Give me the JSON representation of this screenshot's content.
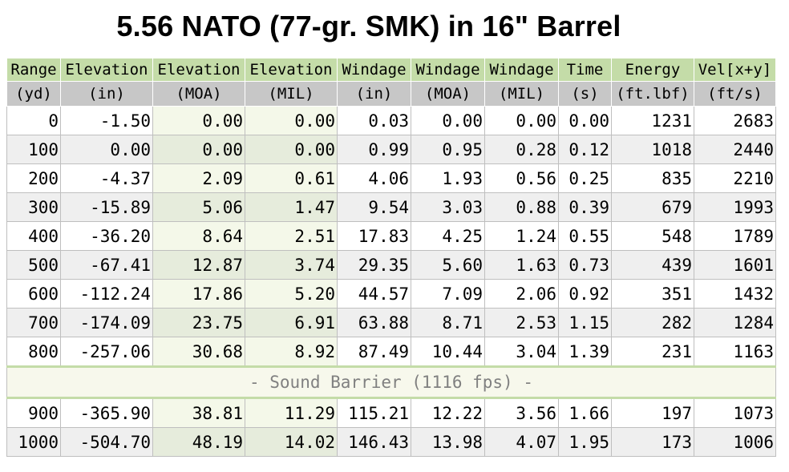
{
  "title": "5.56 NATO (77-gr. SMK) in 16\" Barrel",
  "headers": [
    "Range",
    "Elevation",
    "Elevation",
    "Elevation",
    "Windage",
    "Windage",
    "Windage",
    "Time",
    "Energy",
    "Vel[x+y]"
  ],
  "units": [
    "(yd)",
    "(in)",
    "(MOA)",
    "(MIL)",
    "(in)",
    "(MOA)",
    "(MIL)",
    "(s)",
    "(ft.lbf)",
    "(ft/s)"
  ],
  "rows_before": [
    [
      "0",
      "-1.50",
      "0.00",
      "0.00",
      "0.03",
      "0.00",
      "0.00",
      "0.00",
      "1231",
      "2683"
    ],
    [
      "100",
      "0.00",
      "0.00",
      "0.00",
      "0.99",
      "0.95",
      "0.28",
      "0.12",
      "1018",
      "2440"
    ],
    [
      "200",
      "-4.37",
      "2.09",
      "0.61",
      "4.06",
      "1.93",
      "0.56",
      "0.25",
      "835",
      "2210"
    ],
    [
      "300",
      "-15.89",
      "5.06",
      "1.47",
      "9.54",
      "3.03",
      "0.88",
      "0.39",
      "679",
      "1993"
    ],
    [
      "400",
      "-36.20",
      "8.64",
      "2.51",
      "17.83",
      "4.25",
      "1.24",
      "0.55",
      "548",
      "1789"
    ],
    [
      "500",
      "-67.41",
      "12.87",
      "3.74",
      "29.35",
      "5.60",
      "1.63",
      "0.73",
      "439",
      "1601"
    ],
    [
      "600",
      "-112.24",
      "17.86",
      "5.20",
      "44.57",
      "7.09",
      "2.06",
      "0.92",
      "351",
      "1432"
    ],
    [
      "700",
      "-174.09",
      "23.75",
      "6.91",
      "63.88",
      "8.71",
      "2.53",
      "1.15",
      "282",
      "1284"
    ],
    [
      "800",
      "-257.06",
      "30.68",
      "8.92",
      "87.49",
      "10.44",
      "3.04",
      "1.39",
      "231",
      "1163"
    ]
  ],
  "barrier_label": "- Sound Barrier (1116 fps) -",
  "rows_after": [
    [
      "900",
      "-365.90",
      "38.81",
      "11.29",
      "115.21",
      "12.22",
      "3.56",
      "1.66",
      "197",
      "1073"
    ],
    [
      "1000",
      "-504.70",
      "48.19",
      "14.02",
      "146.43",
      "13.98",
      "4.07",
      "1.95",
      "173",
      "1006"
    ]
  ]
}
